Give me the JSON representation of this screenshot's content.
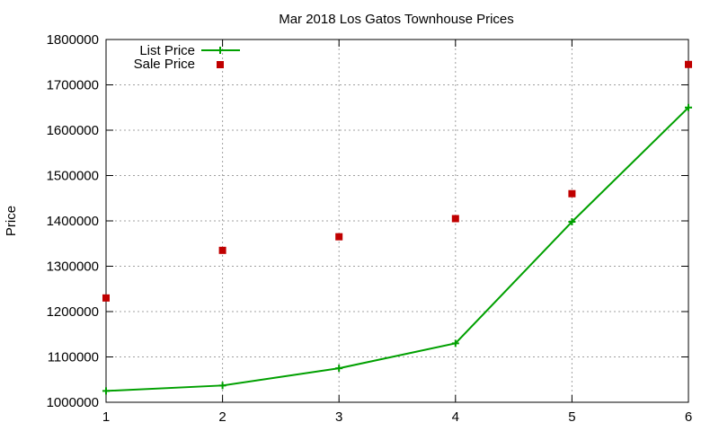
{
  "chart_data": {
    "type": "line",
    "title": "Mar 2018 Los Gatos Townhouse Prices",
    "xlabel": "",
    "ylabel": "Price",
    "x": [
      1,
      2,
      3,
      4,
      5,
      6
    ],
    "xlim": [
      1,
      6
    ],
    "ylim": [
      1000000,
      1800000
    ],
    "xticks": [
      "1",
      "2",
      "3",
      "4",
      "5",
      "6"
    ],
    "yticks": [
      "1000000",
      "1100000",
      "1200000",
      "1300000",
      "1400000",
      "1500000",
      "1600000",
      "1700000",
      "1800000"
    ],
    "grid": true,
    "legend_position": "top-left",
    "series": [
      {
        "name": "List Price",
        "style": "line-with-plus-markers",
        "color": "#00a000",
        "values": [
          1025000,
          1037000,
          1075000,
          1130000,
          1398000,
          1650000
        ]
      },
      {
        "name": "Sale Price",
        "style": "square-markers",
        "color": "#c00000",
        "values": [
          1230000,
          1335000,
          1365000,
          1405000,
          1460000,
          1745000
        ]
      }
    ]
  }
}
